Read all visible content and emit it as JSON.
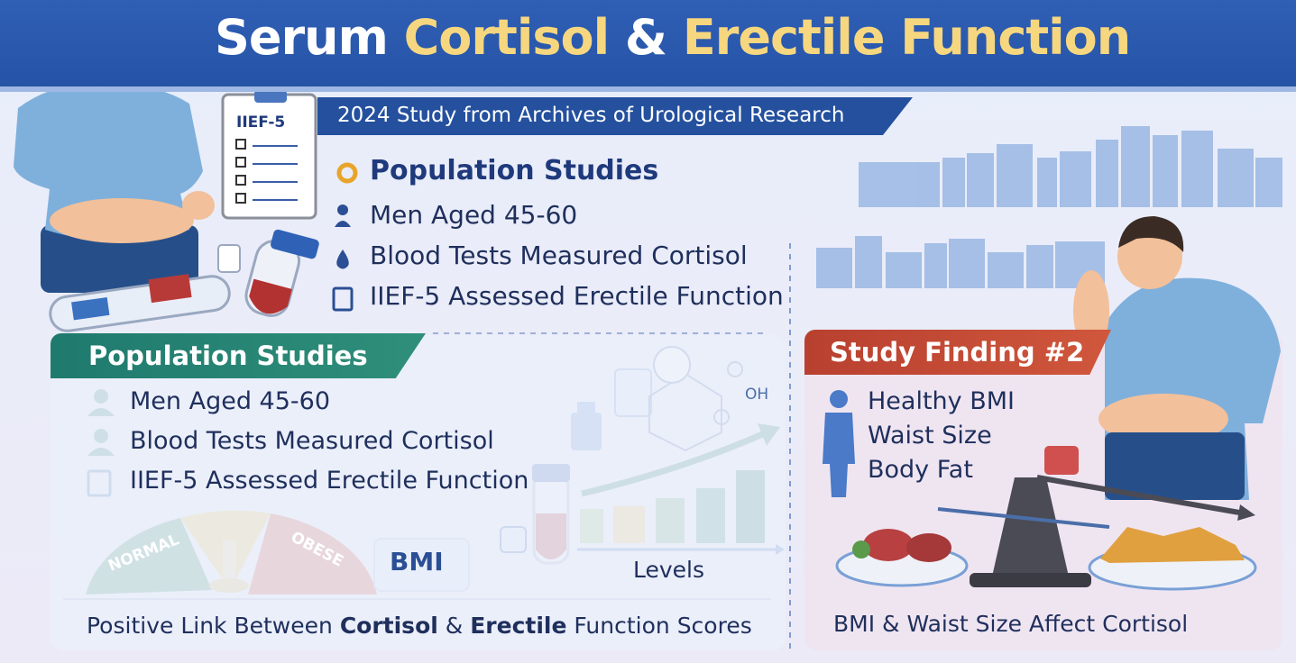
{
  "header": {
    "title": [
      "Serum",
      "Cortisol",
      "&",
      "Erectile Function"
    ],
    "subtitle": "2024 Study from Archives of Urological Research"
  },
  "clipboard": {
    "label": "IIEF-5"
  },
  "overview": {
    "heading": "Population Studies",
    "items": [
      "Men Aged 45-60",
      "Blood Tests Measured Cortisol",
      "IIEF-5 Assessed Erectile Function"
    ]
  },
  "left_panel": {
    "heading": "Population Studies",
    "items": [
      "Men Aged 45-60",
      "Blood Tests Measured Cortisol",
      "IIEF-5 Assessed Erectile Function"
    ],
    "gauge": {
      "labels": [
        "NORMAL",
        "OBESE"
      ],
      "badge": "BMI"
    },
    "molecule": {
      "label": "OH"
    },
    "chart": {
      "axis_label": "Levels"
    },
    "footer": [
      "Positive Link Between",
      "Cortisol",
      "&",
      "Erectile",
      "Function Scores"
    ]
  },
  "right_panel": {
    "heading": "Study Finding #2",
    "items": [
      "Healthy BMI",
      "Waist Size",
      "Body Fat"
    ],
    "footer": "BMI & Waist Size Affect Cortisol"
  }
}
